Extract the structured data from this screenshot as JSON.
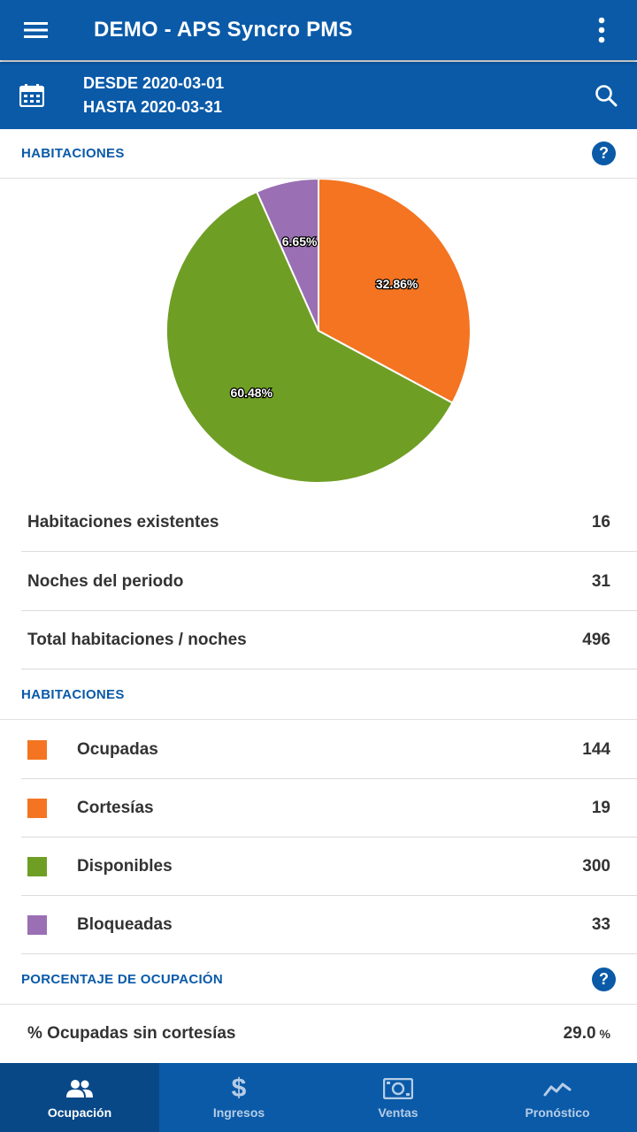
{
  "appbar": {
    "title": "DEMO - APS Syncro PMS"
  },
  "date_range": {
    "from": "DESDE 2020-03-01",
    "to": "HASTA 2020-03-31"
  },
  "sections": {
    "habitaciones_chart": "HABITACIONES",
    "habitaciones_list": "HABITACIONES",
    "porcentaje": "PORCENTAJE DE OCUPACIÓN"
  },
  "help_glyph": "?",
  "chart_data": {
    "type": "pie",
    "slices": [
      {
        "label": "Ocupadas",
        "value": 32.86,
        "display": "32.86%",
        "color": "#f47421"
      },
      {
        "label": "Disponibles",
        "value": 60.48,
        "display": "60.48%",
        "color": "#6f9e25"
      },
      {
        "label": "Bloqueadas",
        "value": 6.65,
        "display": "6.65%",
        "color": "#9a6fb3"
      }
    ]
  },
  "summary": [
    {
      "label": "Habitaciones existentes",
      "value": "16"
    },
    {
      "label": "Noches del periodo",
      "value": "31"
    },
    {
      "label": "Total habitaciones / noches",
      "value": "496"
    }
  ],
  "rooms": [
    {
      "label": "Ocupadas",
      "value": "144",
      "color": "#f47421"
    },
    {
      "label": "Cortesías",
      "value": "19",
      "color": "#f47421"
    },
    {
      "label": "Disponibles",
      "value": "300",
      "color": "#6f9e25"
    },
    {
      "label": "Bloqueadas",
      "value": "33",
      "color": "#9a6fb3"
    }
  ],
  "occupancy": {
    "label": "% Ocupadas sin cortesías",
    "value": "29.0",
    "unit": "%"
  },
  "nav": [
    {
      "label": "Ocupación",
      "icon": "people-icon",
      "active": true
    },
    {
      "label": "Ingresos",
      "icon": "dollar-icon",
      "active": false
    },
    {
      "label": "Ventas",
      "icon": "cash-icon",
      "active": false
    },
    {
      "label": "Pronóstico",
      "icon": "trend-icon",
      "active": false
    }
  ]
}
